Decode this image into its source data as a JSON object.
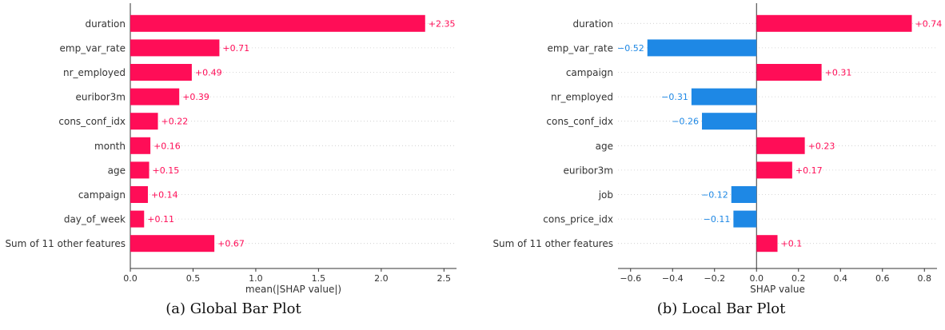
{
  "chart_data": [
    {
      "type": "bar",
      "orientation": "horizontal",
      "caption": "(a) Global Bar Plot",
      "xlabel": "mean(|SHAP value|)",
      "xlim": [
        0,
        2.6
      ],
      "xticks": [
        0.0,
        0.5,
        1.0,
        1.5,
        2.0,
        2.5
      ],
      "xtick_labels": [
        "0.0",
        "0.5",
        "1.0",
        "1.5",
        "2.0",
        "2.5"
      ],
      "categories": [
        "duration",
        "emp_var_rate",
        "nr_employed",
        "euribor3m",
        "cons_conf_idx",
        "month",
        "age",
        "campaign",
        "day_of_week",
        "Sum of 11 other features"
      ],
      "values": [
        2.35,
        0.71,
        0.49,
        0.39,
        0.22,
        0.16,
        0.15,
        0.14,
        0.11,
        0.67
      ],
      "value_labels": [
        "+2.35",
        "+0.71",
        "+0.49",
        "+0.39",
        "+0.22",
        "+0.16",
        "+0.15",
        "+0.14",
        "+0.11",
        "+0.67"
      ],
      "positive_color": "#ff0d57",
      "negative_color": "#1e88e5"
    },
    {
      "type": "bar",
      "orientation": "horizontal",
      "caption": "(b) Local Bar Plot",
      "xlabel": "SHAP value",
      "xlim": [
        -0.66,
        0.86
      ],
      "xticks": [
        -0.6,
        -0.4,
        -0.2,
        0.0,
        0.2,
        0.4,
        0.6,
        0.8
      ],
      "xtick_labels": [
        "−0.6",
        "−0.4",
        "−0.2",
        "0.0",
        "0.2",
        "0.4",
        "0.6",
        "0.8"
      ],
      "categories": [
        "duration",
        "emp_var_rate",
        "campaign",
        "nr_employed",
        "cons_conf_idx",
        "age",
        "euribor3m",
        "job",
        "cons_price_idx",
        "Sum of 11 other features"
      ],
      "values": [
        0.74,
        -0.52,
        0.31,
        -0.31,
        -0.26,
        0.23,
        0.17,
        -0.12,
        -0.11,
        0.1
      ],
      "value_labels": [
        "+0.74",
        "−0.52",
        "+0.31",
        "−0.31",
        "−0.26",
        "+0.23",
        "+0.17",
        "−0.12",
        "−0.11",
        "+0.1"
      ],
      "positive_color": "#ff0d57",
      "negative_color": "#1e88e5"
    }
  ]
}
